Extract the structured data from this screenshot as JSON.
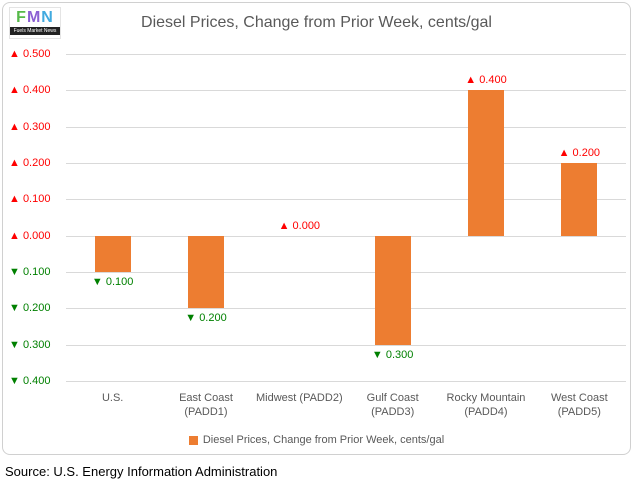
{
  "logo": {
    "letters": [
      {
        "char": "F",
        "color": "#56B949"
      },
      {
        "char": "M",
        "color": "#8B5FD3"
      },
      {
        "char": "N",
        "color": "#41AADF"
      }
    ],
    "subtitle": "Fuels Market News"
  },
  "chart_data": {
    "type": "bar",
    "title": "Diesel Prices, Change from Prior Week, cents/gal",
    "xlabel": "",
    "ylabel": "",
    "categories": [
      "U.S.",
      "East Coast (PADD1)",
      "Midwest (PADD2)",
      "Gulf Coast (PADD3)",
      "Rocky Mountain (PADD4)",
      "West Coast (PADD5)"
    ],
    "category_lines": [
      [
        "U.S."
      ],
      [
        "East Coast",
        "(PADD1)"
      ],
      [
        "Midwest (PADD2)"
      ],
      [
        "Gulf Coast",
        "(PADD3)"
      ],
      [
        "Rocky Mountain",
        "(PADD4)"
      ],
      [
        "West Coast",
        "(PADD5)"
      ]
    ],
    "values": [
      -0.1,
      -0.2,
      0,
      -0.3,
      0.4,
      0.2
    ],
    "data_labels": [
      "▼ 0.100",
      "▼ 0.200",
      "▲ 0.000",
      "▼ 0.300",
      "▲ 0.400",
      "▲ 0.200"
    ],
    "ylim": [
      -0.4,
      0.5
    ],
    "ytick_step": 0.1,
    "yticks": [
      {
        "value": 0.5,
        "label": "▲ 0.500"
      },
      {
        "value": 0.4,
        "label": "▲ 0.400"
      },
      {
        "value": 0.3,
        "label": "▲ 0.300"
      },
      {
        "value": 0.2,
        "label": "▲ 0.200"
      },
      {
        "value": 0.1,
        "label": "▲ 0.100"
      },
      {
        "value": 0,
        "label": "▲ 0.000"
      },
      {
        "value": -0.1,
        "label": "▼ 0.100"
      },
      {
        "value": -0.2,
        "label": "▼ 0.200"
      },
      {
        "value": -0.3,
        "label": "▼ 0.300"
      },
      {
        "value": -0.4,
        "label": "▼ 0.400"
      }
    ],
    "grid": true,
    "legend": {
      "label": "Diesel Prices, Change from Prior Week, cents/gal",
      "marker_color": "#ED7D31",
      "position": "bottom"
    },
    "colors": {
      "bar": "#ED7D31",
      "positive": "#FF0000",
      "negative": "#008000",
      "grid": "#D9D9D9",
      "axis_text": "#595959",
      "title_text": "#595959",
      "border": "#D0D0D0",
      "source_text": "#000000"
    }
  },
  "footer": {
    "source": "Source: U.S. Energy Information Administration"
  }
}
